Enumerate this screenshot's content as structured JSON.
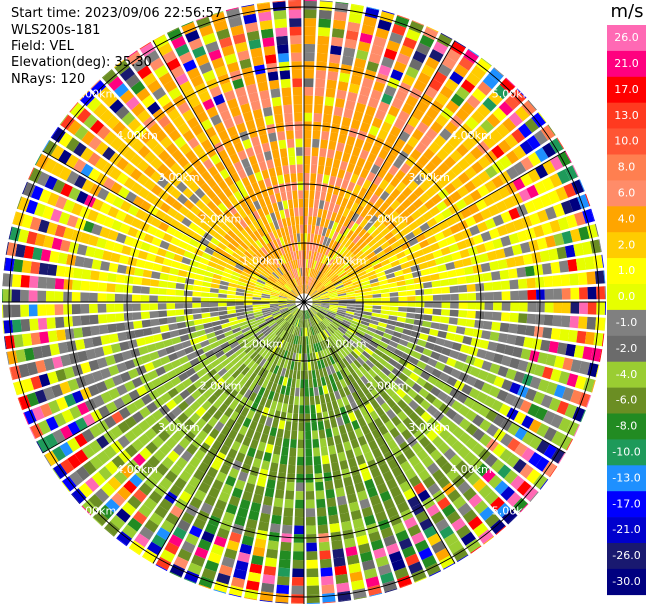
{
  "header": {
    "start_time": "Start time: 2023/09/06 22:56:57",
    "instrument": "WLS200s-181",
    "field": "Field: VEL",
    "elevation": "Elevation(deg): 35.30",
    "nrays": "NRays: 120"
  },
  "chart_data": {
    "type": "heatmap",
    "projection": "polar-ppi",
    "n_rays": 120,
    "range_rings_km": [
      1.0,
      2.0,
      3.0,
      4.0,
      5.0
    ],
    "ring_labels": [
      "1.00km",
      "2.00km",
      "3.00km",
      "4.00km",
      "5.00km"
    ],
    "azimuth_spokes_deg": [
      0,
      30,
      60,
      90,
      120,
      150,
      180,
      210,
      240,
      270,
      300,
      330
    ],
    "max_range_km": 7.0,
    "field": "VEL",
    "units": "m/s",
    "colorbar": {
      "units": "m/s",
      "tick_labels": [
        "26.0",
        "21.0",
        "17.0",
        "13.0",
        "10.0",
        "8.0",
        "6.0",
        "4.0",
        "2.0",
        "1.0",
        "0.0",
        "-1.0",
        "-2.0",
        "-4.0",
        "-6.0",
        "-8.0",
        "-10.0",
        "-13.0",
        "-17.0",
        "-21.0",
        "-26.0",
        "-30.0"
      ],
      "colors": [
        "#ff69b4",
        "#ff007f",
        "#ff0000",
        "#ff3a1f",
        "#ff5533",
        "#ff7f50",
        "#ff8c69",
        "#ffa500",
        "#ffcc00",
        "#ffff00",
        "#e6ff00",
        "#808080",
        "#6b6b6b",
        "#9acd32",
        "#6b8e23",
        "#228b22",
        "#1e9a5a",
        "#1e90ff",
        "#0000ff",
        "#0000cd",
        "#191970",
        "#000080"
      ]
    },
    "pattern": {
      "north_sector": "0.0 to 8.0 m/s (yellow-orange, receding)",
      "south_sector": "-1.0 to -8.0 m/s (green, approaching)",
      "far_range": "noisy / random velocities"
    }
  }
}
